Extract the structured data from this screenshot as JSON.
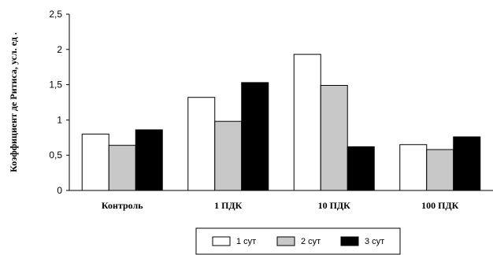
{
  "chart_data": {
    "type": "bar",
    "ylabel": "Коэффициент де Ритиса, усл. ед .",
    "xlabel": "",
    "ylim": [
      0,
      2.5
    ],
    "yticks": [
      "0",
      "0,5",
      "1",
      "1,5",
      "2",
      "2,5"
    ],
    "categories": [
      "Контроль",
      "1 ПДК",
      "10 ПДК",
      "100 ПДК"
    ],
    "series": [
      {
        "name": "1 сут",
        "values": [
          0.8,
          1.32,
          1.93,
          0.65
        ],
        "color": "#ffffff"
      },
      {
        "name": "2 сут",
        "values": [
          0.64,
          0.98,
          1.49,
          0.58
        ],
        "color": "#c8c8c8"
      },
      {
        "name": "3 сут",
        "values": [
          0.86,
          1.53,
          0.62,
          0.76
        ],
        "color": "#000000"
      }
    ],
    "grid": false,
    "legend": "bottom"
  }
}
